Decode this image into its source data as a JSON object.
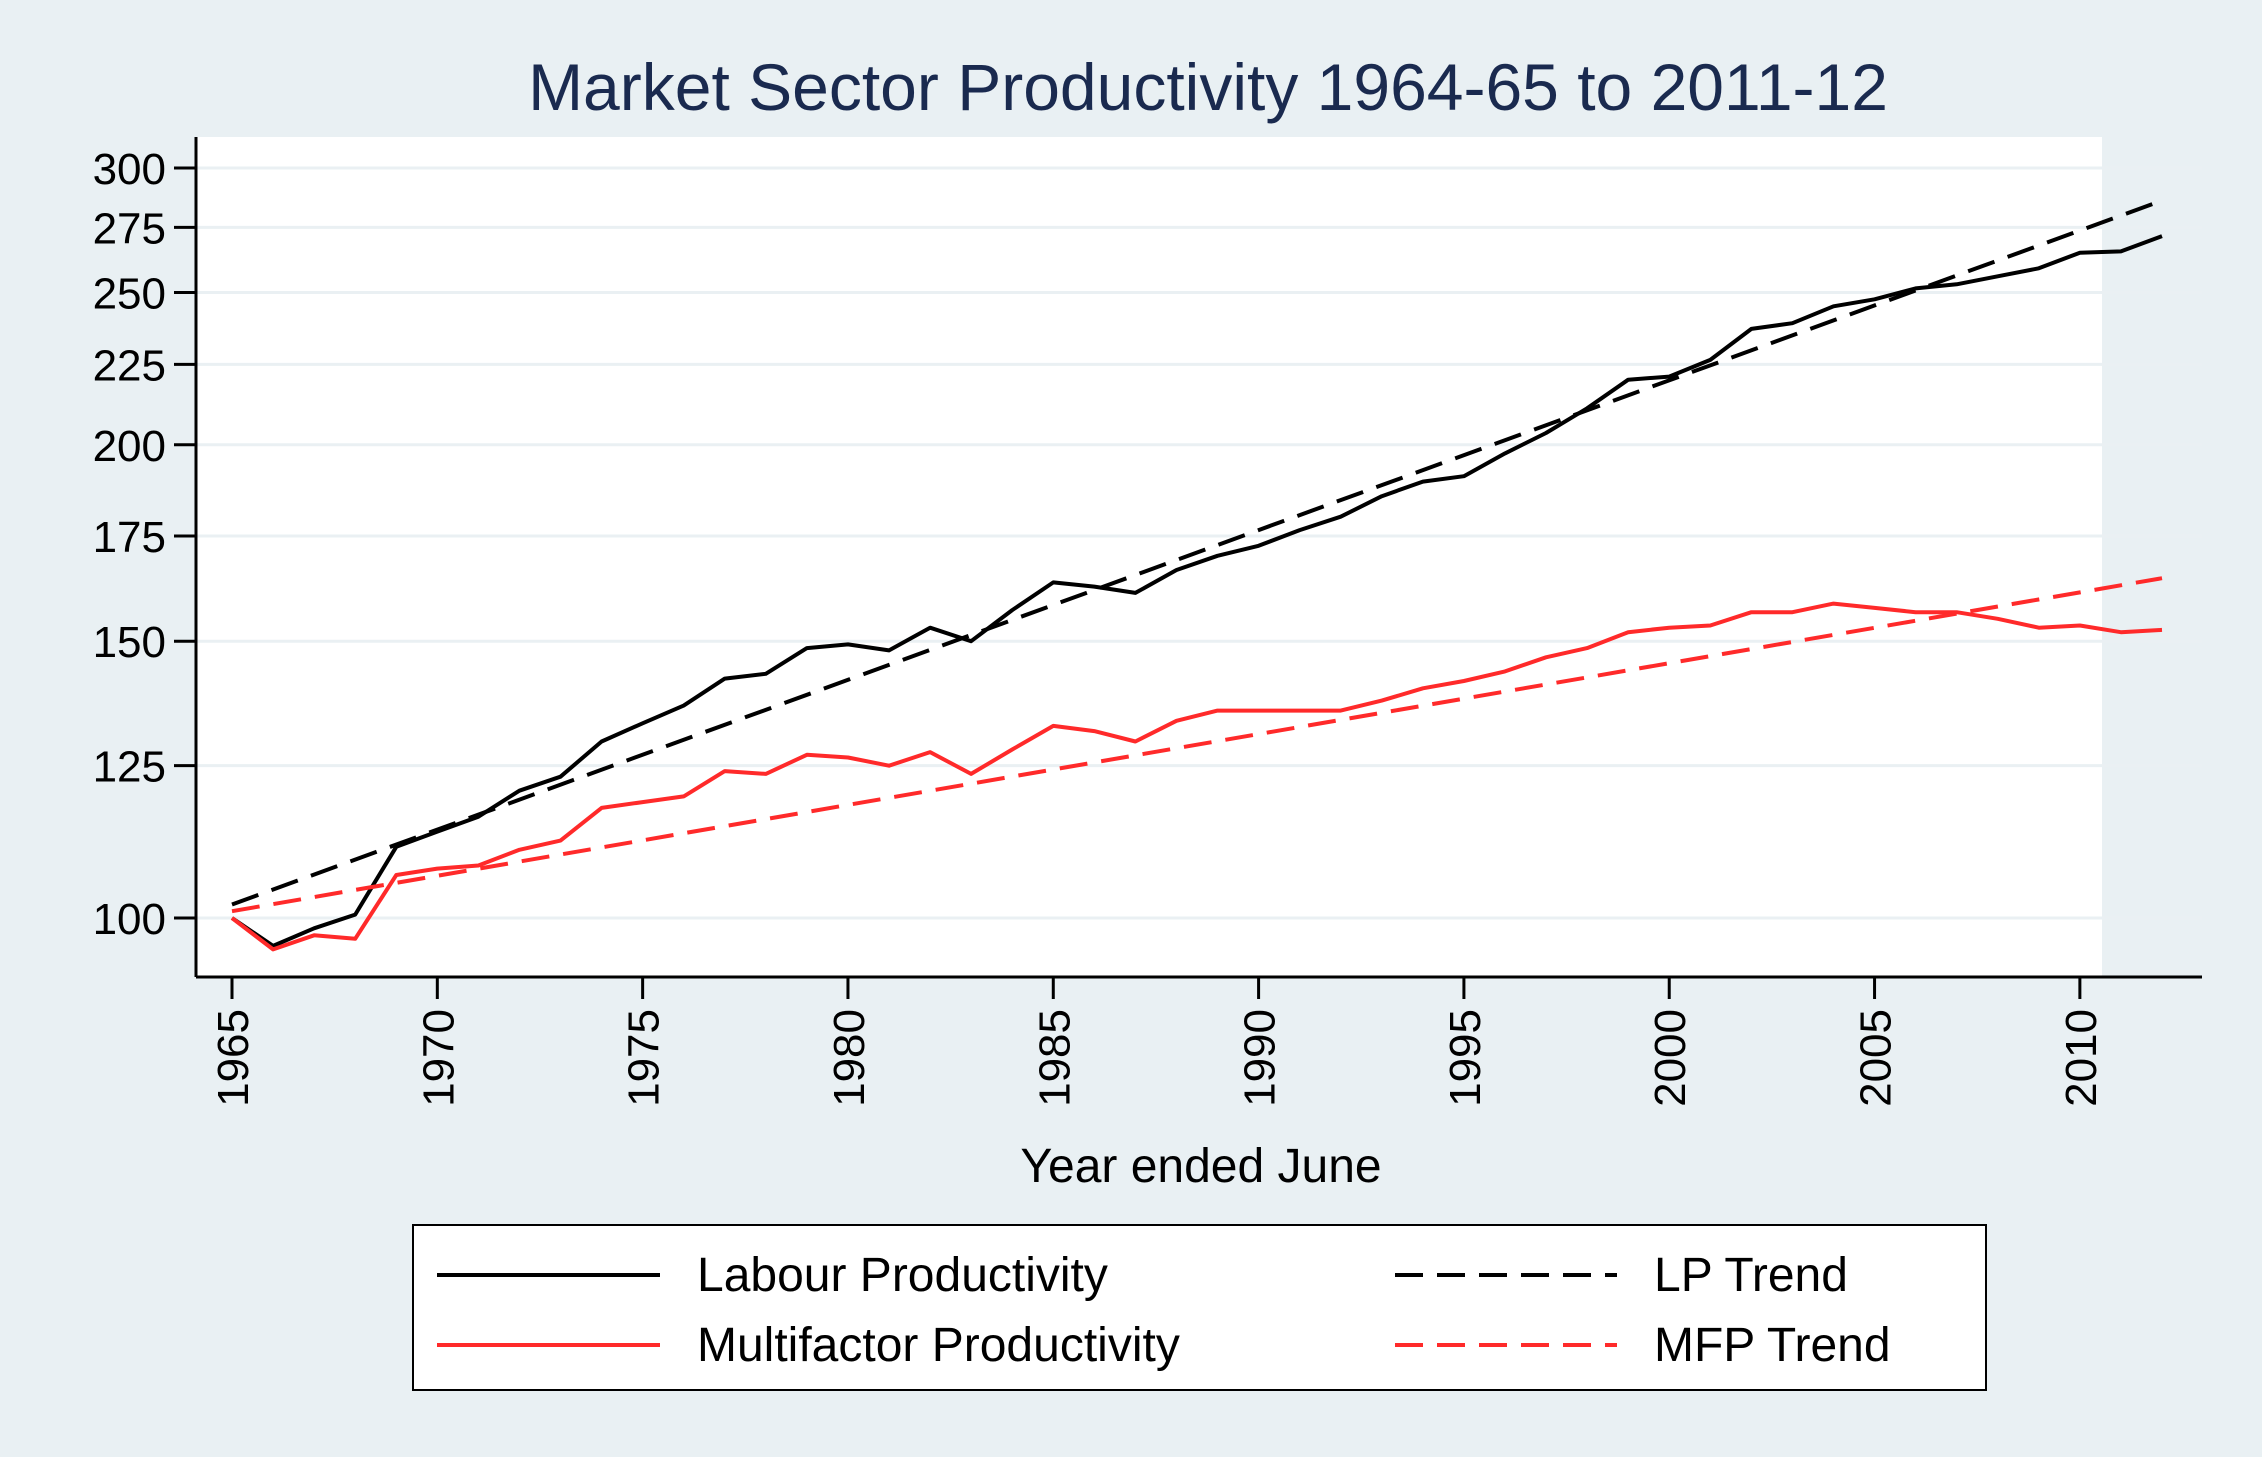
{
  "chart_data": {
    "type": "line",
    "title": "Market Sector Productivity 1964-65 to 2011-12",
    "xlabel": "Year ended June",
    "ylabel": "",
    "y_scale": "log",
    "xlim": [
      1965,
      2012
    ],
    "ylim": [
      95,
      305
    ],
    "xticks": [
      1965,
      1970,
      1975,
      1980,
      1985,
      1990,
      1995,
      2000,
      2005,
      2010
    ],
    "yticks": [
      100,
      125,
      150,
      175,
      200,
      225,
      250,
      275,
      300
    ],
    "grid": true,
    "legend_position": "bottom",
    "x": [
      1965,
      1966,
      1967,
      1968,
      1969,
      1970,
      1971,
      1972,
      1973,
      1974,
      1975,
      1976,
      1977,
      1978,
      1979,
      1980,
      1981,
      1982,
      1983,
      1984,
      1985,
      1986,
      1987,
      1988,
      1989,
      1990,
      1991,
      1992,
      1993,
      1994,
      1995,
      1996,
      1997,
      1998,
      1999,
      2000,
      2001,
      2002,
      2003,
      2004,
      2005,
      2006,
      2007,
      2008,
      2009,
      2010,
      2011,
      2012
    ],
    "series": [
      {
        "name": "Labour Productivity",
        "style": "solid",
        "color": "#000000",
        "values": [
          100,
          96,
          98.5,
          100.5,
          111,
          113.5,
          116,
          120.5,
          123,
          129.5,
          133,
          136.5,
          142,
          143,
          148.5,
          149.3,
          148,
          153,
          150,
          157,
          163.5,
          162.5,
          161,
          166.5,
          170,
          172.5,
          176.5,
          180,
          185.5,
          189.5,
          191,
          197.5,
          203.5,
          211,
          220,
          221,
          226.5,
          237,
          239,
          245,
          247.5,
          251.5,
          253,
          256,
          259,
          265,
          265.5,
          271.5
        ]
      },
      {
        "name": "Multifactor Productivity",
        "style": "solid",
        "color": "#ff2a2a",
        "values": [
          100,
          95.5,
          97.5,
          97,
          106.5,
          107.5,
          108,
          110.5,
          112,
          117.5,
          118.5,
          119.5,
          124,
          123.5,
          127,
          126.5,
          125,
          127.5,
          123.5,
          128,
          132.5,
          131.5,
          129.5,
          133.5,
          135.5,
          135.5,
          135.5,
          135.5,
          137.5,
          140,
          141.5,
          143.5,
          146.5,
          148.5,
          152,
          153,
          153.5,
          156.5,
          156.5,
          158.5,
          157.5,
          156.5,
          156.5,
          155,
          153,
          153.5,
          152,
          152.5
        ]
      },
      {
        "name": "LP Trend",
        "style": "dashed",
        "color": "#000000",
        "x": [
          1965,
          2012
        ],
        "values": [
          102,
          286
        ]
      },
      {
        "name": "MFP Trend",
        "style": "dashed",
        "color": "#ff2a2a",
        "x": [
          1965,
          2012
        ],
        "values": [
          101,
          164.5
        ]
      }
    ]
  },
  "colors": {
    "page_background": "#e9f0f3",
    "plot_background": "#ffffff",
    "title": "#1a2a4f",
    "grid": "#eaf0f3"
  }
}
